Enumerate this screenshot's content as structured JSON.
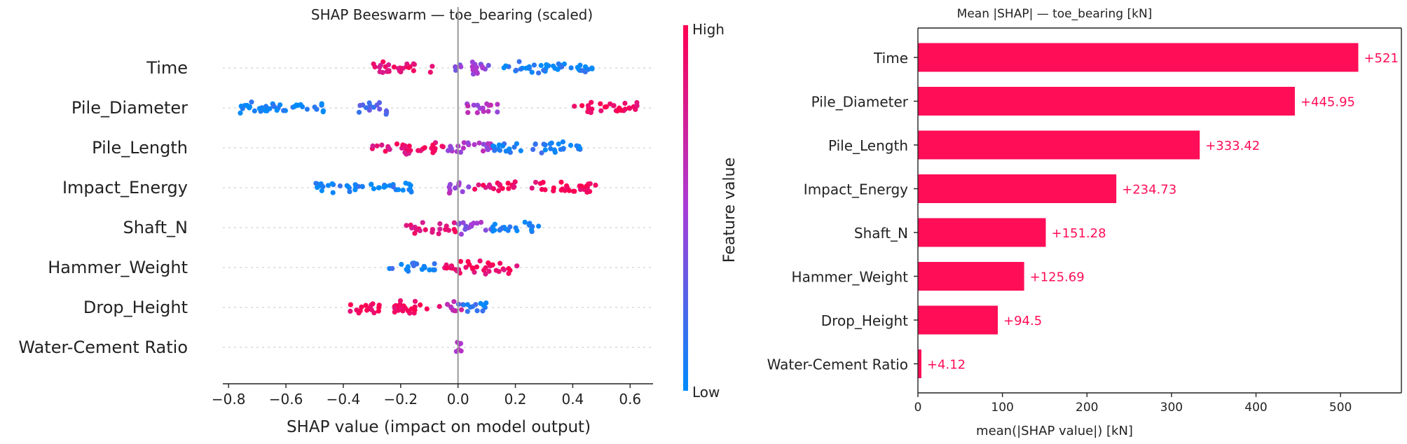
{
  "colors": {
    "high": "#ff0051",
    "low": "#008bfb",
    "bar": "#ff0d57",
    "bar_label": "#ff0d57"
  },
  "chart_data": [
    {
      "type": "scatter",
      "title": "SHAP Beeswarm — toe_bearing (scaled)",
      "xlabel": "SHAP value (impact on model output)",
      "xlim": [
        -0.82,
        0.68
      ],
      "xticks": [
        "−0.8",
        "−0.6",
        "−0.4",
        "−0.2",
        "0.0",
        "0.2",
        "0.4",
        "0.6"
      ],
      "xtick_values": [
        -0.8,
        -0.6,
        -0.4,
        -0.2,
        0.0,
        0.2,
        0.4,
        0.6
      ],
      "features": [
        "Time",
        "Pile_Diameter",
        "Pile_Length",
        "Impact_Energy",
        "Shaft_N",
        "Hammer_Weight",
        "Drop_Height",
        "Water-Cement Ratio"
      ],
      "feature_ranges": [
        {
          "feature": "Time",
          "clusters": [
            [
              -0.3,
              -0.08,
              0.85
            ],
            [
              -0.02,
              0.14,
              0.45
            ],
            [
              0.16,
              0.48,
              0.05
            ]
          ]
        },
        {
          "feature": "Pile_Diameter",
          "clusters": [
            [
              -0.76,
              -0.46,
              0.05
            ],
            [
              -0.35,
              -0.23,
              0.25
            ],
            [
              0.02,
              0.14,
              0.55
            ],
            [
              0.4,
              0.63,
              0.95
            ]
          ]
        },
        {
          "feature": "Pile_Length",
          "clusters": [
            [
              -0.3,
              -0.05,
              0.88
            ],
            [
              -0.05,
              0.12,
              0.5
            ],
            [
              0.12,
              0.43,
              0.08
            ]
          ]
        },
        {
          "feature": "Impact_Energy",
          "clusters": [
            [
              -0.5,
              -0.16,
              0.05
            ],
            [
              -0.04,
              0.04,
              0.5
            ],
            [
              0.05,
              0.2,
              0.9
            ],
            [
              0.25,
              0.48,
              0.95
            ]
          ]
        },
        {
          "feature": "Shaft_N",
          "clusters": [
            [
              -0.18,
              0.0,
              0.85
            ],
            [
              0.0,
              0.12,
              0.45
            ],
            [
              0.12,
              0.29,
              0.05
            ]
          ]
        },
        {
          "feature": "Hammer_Weight",
          "clusters": [
            [
              -0.24,
              -0.08,
              0.1
            ],
            [
              -0.07,
              0.0,
              0.9
            ],
            [
              0.0,
              0.22,
              0.92
            ]
          ]
        },
        {
          "feature": "Drop_Height",
          "clusters": [
            [
              -0.38,
              -0.06,
              0.95
            ],
            [
              -0.05,
              0.02,
              0.6
            ],
            [
              0.0,
              0.1,
              0.1
            ]
          ]
        },
        {
          "feature": "Water-Cement Ratio",
          "clusters": [
            [
              -0.008,
              0.012,
              0.5
            ]
          ]
        }
      ],
      "colorbar": {
        "label": "Feature value",
        "high": "High",
        "low": "Low"
      }
    },
    {
      "type": "bar",
      "title": "Mean |SHAP| — toe_bearing [kN]",
      "xlabel": "mean(|SHAP value|) [kN]",
      "xlim": [
        0,
        572
      ],
      "xticks": [
        "0",
        "100",
        "200",
        "300",
        "400",
        "500"
      ],
      "xtick_values": [
        0,
        100,
        200,
        300,
        400,
        500
      ],
      "categories": [
        "Time",
        "Pile_Diameter",
        "Pile_Length",
        "Impact_Energy",
        "Shaft_N",
        "Hammer_Weight",
        "Drop_Height",
        "Water-Cement Ratio"
      ],
      "values": [
        521,
        445.95,
        333.42,
        234.73,
        151.28,
        125.69,
        94.5,
        4.12
      ],
      "value_labels": [
        "+521",
        "+445.95",
        "+333.42",
        "+234.73",
        "+151.28",
        "+125.69",
        "+94.5",
        "+4.12"
      ]
    }
  ]
}
